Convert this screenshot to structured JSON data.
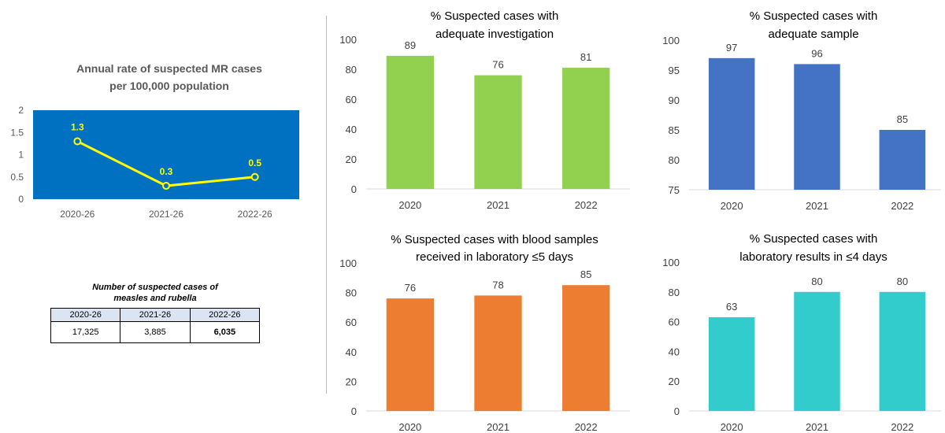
{
  "chart_data": [
    {
      "type": "line",
      "title": "Annual rate of suspected MR cases per 100,000 population",
      "title_lines": [
        "Annual rate of suspected MR cases",
        "per 100,000 population"
      ],
      "categories": [
        "2020-26",
        "2021-26",
        "2022-26"
      ],
      "values": [
        1.3,
        0.3,
        0.5
      ],
      "data_labels": [
        "1.3",
        "0.3",
        "0.5"
      ],
      "ylim": [
        0,
        2
      ],
      "yticks": [
        0,
        0.5,
        1,
        1.5,
        2
      ],
      "ytick_labels": [
        "0",
        "0.5",
        "1",
        "1.5",
        "2"
      ],
      "plot_background": "#0070c0",
      "line_color": "#ffff00",
      "grid": false
    },
    {
      "type": "bar",
      "title": "% Suspected cases with adequate investigation",
      "title_lines": [
        "% Suspected cases with",
        "adequate investigation"
      ],
      "categories": [
        "2020",
        "2021",
        "2022"
      ],
      "values": [
        89,
        76,
        81
      ],
      "ylim": [
        0,
        100
      ],
      "yticks": [
        0,
        20,
        40,
        60,
        80,
        100
      ],
      "color": "#92d050",
      "grid": false
    },
    {
      "type": "bar",
      "title": "% Suspected cases with adequate sample",
      "title_lines": [
        "% Suspected cases with",
        "adequate sample"
      ],
      "categories": [
        "2020",
        "2021",
        "2022"
      ],
      "values": [
        97,
        96,
        85
      ],
      "ylim": [
        75,
        100
      ],
      "yticks": [
        75,
        80,
        85,
        90,
        95,
        100
      ],
      "color": "#4472c4",
      "grid": false
    },
    {
      "type": "bar",
      "title": "% Suspected cases with blood samples received in laboratory ≤5 days",
      "title_lines": [
        "% Suspected cases with blood samples",
        "received in laboratory ≤5 days"
      ],
      "categories": [
        "2020",
        "2021",
        "2022"
      ],
      "values": [
        76,
        78,
        85
      ],
      "ylim": [
        0,
        100
      ],
      "yticks": [
        0,
        20,
        40,
        60,
        80,
        100
      ],
      "color": "#ed7d31",
      "grid": false
    },
    {
      "type": "bar",
      "title": "% Suspected cases with laboratory results in ≤4 days",
      "title_lines": [
        "% Suspected cases with",
        "laboratory results in ≤4 days"
      ],
      "categories": [
        "2020",
        "2021",
        "2022"
      ],
      "values": [
        63,
        80,
        80
      ],
      "ylim": [
        0,
        100
      ],
      "yticks": [
        0,
        20,
        40,
        60,
        80,
        100
      ],
      "color": "#33cccc",
      "grid": false
    }
  ],
  "table": {
    "title_lines": [
      "Number of suspected cases of",
      "measles and rubella"
    ],
    "headers": [
      "2020-26",
      "2021-26",
      "2022-26"
    ],
    "values": [
      "17,325",
      "3,885",
      "6,035"
    ]
  }
}
